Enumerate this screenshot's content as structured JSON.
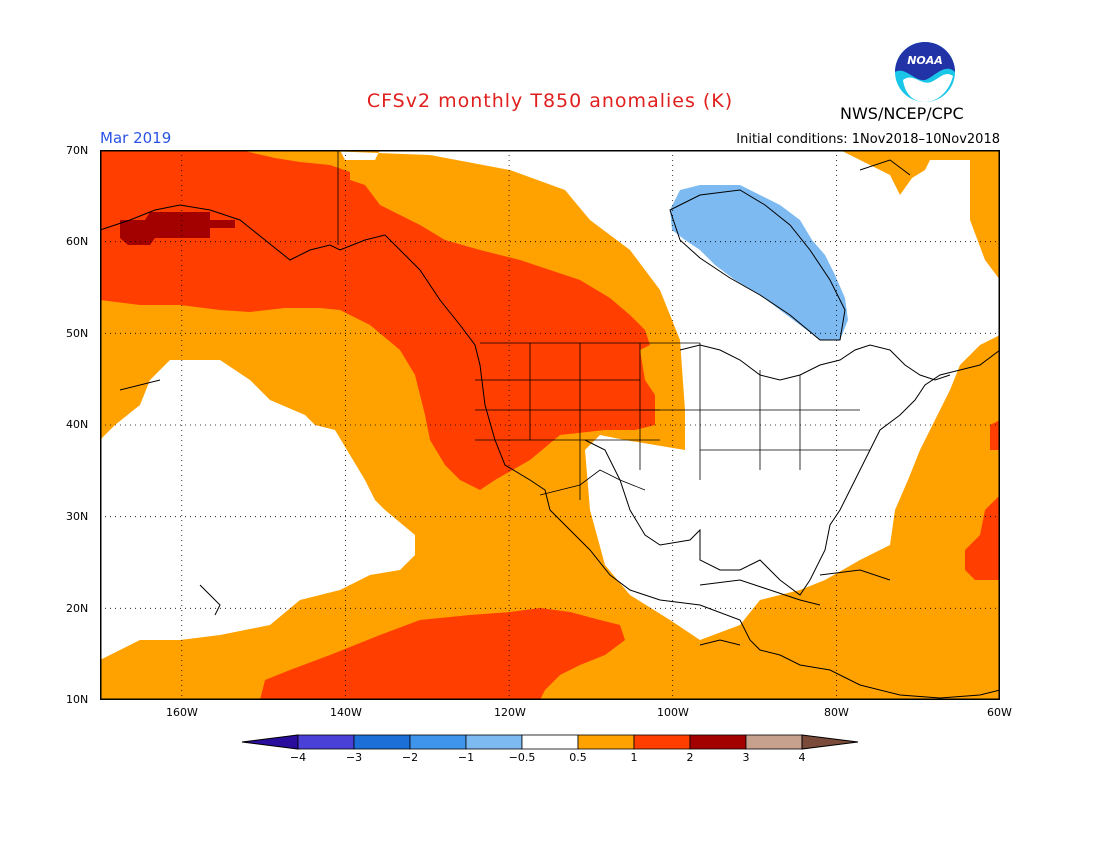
{
  "header": {
    "title": "CFSv2 monthly T850 anomalies (K)",
    "organization": "NWS/NCEP/CPC",
    "valid_month": "Mar 2019",
    "initial_conditions": "Initial conditions: 1Nov2018–10Nov2018"
  },
  "logo": {
    "name": "noaa-logo",
    "text": "NOAA"
  },
  "map": {
    "projection": "lat-lon",
    "lon_range": [
      -170,
      -60
    ],
    "lat_range": [
      10,
      70
    ],
    "lat_labels": [
      "70N",
      "60N",
      "50N",
      "40N",
      "30N",
      "20N",
      "10N"
    ],
    "lon_labels": [
      "160W",
      "140W",
      "120W",
      "100W",
      "80W",
      "60W"
    ],
    "grid": "dotted"
  },
  "legend": {
    "bins": [
      "<-4",
      "-4 to -3",
      "-3 to -2",
      "-2 to -1",
      "-1 to -0.5",
      "-0.5 to 0.5",
      "0.5 to 1",
      "1 to 2",
      "2 to 3",
      "3 to 4",
      ">4"
    ],
    "colors": [
      "#2a0d9c",
      "#4a3fd6",
      "#1d6fd8",
      "#3f95ec",
      "#7dbaf2",
      "#ffffff",
      "#ffa200",
      "#ff3e00",
      "#a30000",
      "#c8a08e",
      "#7a4a3a"
    ],
    "tick_labels": [
      "−4",
      "−3",
      "−2",
      "−1",
      "−0.5",
      "0.5",
      "1",
      "2",
      "3",
      "4"
    ]
  },
  "colors": {
    "anomaly_0_5_to_1": "#ffa200",
    "anomaly_1_to_2": "#ff3e00",
    "anomaly_2_to_3": "#a30000",
    "anomaly_neg_1_to_neg_0_5": "#7dbaf2",
    "neutral": "#ffffff"
  }
}
